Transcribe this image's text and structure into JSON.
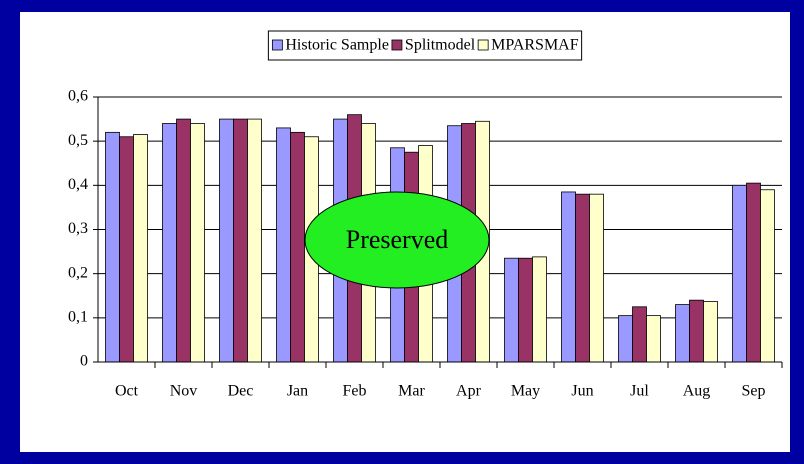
{
  "chart_data": {
    "type": "bar",
    "categories": [
      "Oct",
      "Nov",
      "Dec",
      "Jan",
      "Feb",
      "Mar",
      "Apr",
      "May",
      "Jun",
      "Jul",
      "Aug",
      "Sep"
    ],
    "series": [
      {
        "name": "Historic Sample",
        "color": "#9999ff",
        "values": [
          0.52,
          0.54,
          0.55,
          0.53,
          0.55,
          0.485,
          0.535,
          0.235,
          0.385,
          0.105,
          0.13,
          0.4
        ]
      },
      {
        "name": "Splitmodel",
        "color": "#993366",
        "values": [
          0.51,
          0.55,
          0.55,
          0.52,
          0.56,
          0.475,
          0.54,
          0.235,
          0.38,
          0.125,
          0.14,
          0.405
        ]
      },
      {
        "name": "MPARSMAF",
        "color": "#ffffcc",
        "values": [
          0.515,
          0.54,
          0.55,
          0.51,
          0.54,
          0.49,
          0.545,
          0.238,
          0.38,
          0.105,
          0.137,
          0.39
        ]
      }
    ],
    "ylim": [
      0,
      0.6
    ],
    "yticks": [
      0,
      {
        "value": 0.1,
        "label": "0,1"
      },
      {
        "value": 0.2,
        "label": "0,2"
      },
      {
        "value": 0.3,
        "label": "0,3"
      },
      {
        "value": 0.4,
        "label": "0,4"
      },
      {
        "value": 0.5,
        "label": "0,5"
      },
      {
        "value": 0.6,
        "label": "0,6"
      }
    ],
    "grid": true,
    "legend": "top",
    "annotation": "Preserved"
  }
}
